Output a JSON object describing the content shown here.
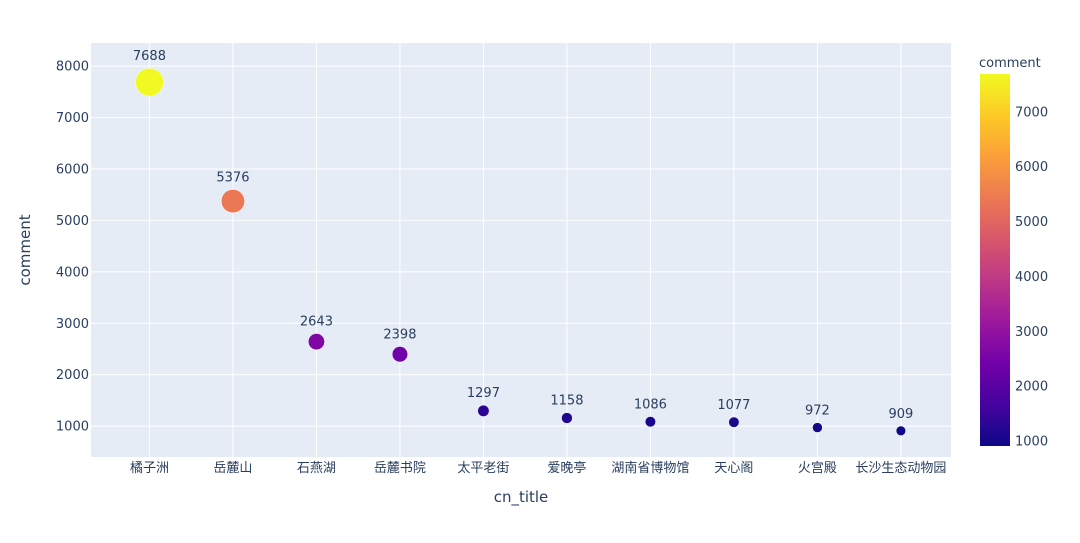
{
  "chart_data": {
    "type": "scatter",
    "title": "",
    "xlabel": "cn_title",
    "ylabel": "comment",
    "categories": [
      "橘子洲",
      "岳麓山",
      "石燕湖",
      "岳麓书院",
      "太平老街",
      "爱晚亭",
      "湖南省博物馆",
      "天心阁",
      "火宫殿",
      "长沙生态动物园"
    ],
    "values": [
      7688,
      5376,
      2643,
      2398,
      1297,
      1158,
      1086,
      1077,
      972,
      909
    ],
    "data_labels": [
      "7688",
      "5376",
      "2643",
      "2398",
      "1297",
      "1158",
      "1086",
      "1077",
      "972",
      "909"
    ],
    "ylim": [
      400,
      8450
    ],
    "y_ticks": [
      1000,
      2000,
      3000,
      4000,
      5000,
      6000,
      7000,
      8000
    ],
    "y_tick_labels": [
      "1000",
      "2000",
      "3000",
      "4000",
      "5000",
      "6000",
      "7000",
      "8000"
    ],
    "marker_size_by": "comment",
    "marker_color_by": "comment",
    "grid": true,
    "colorbar": {
      "title": "comment",
      "range": [
        909,
        7688
      ],
      "ticks": [
        1000,
        2000,
        3000,
        4000,
        5000,
        6000,
        7000
      ],
      "tick_labels": [
        "1000",
        "2000",
        "3000",
        "4000",
        "5000",
        "6000",
        "7000"
      ],
      "colorscale": [
        "#0d0887",
        "#46039f",
        "#7201a8",
        "#9c179e",
        "#bd3786",
        "#d8576b",
        "#ed7953",
        "#fb9f3a",
        "#fdca26",
        "#f0f921"
      ],
      "placement": "right"
    },
    "colors": {
      "plot_bg": "#e5ecf6",
      "grid": "#ffffff",
      "text": "#2a3f5f"
    }
  }
}
